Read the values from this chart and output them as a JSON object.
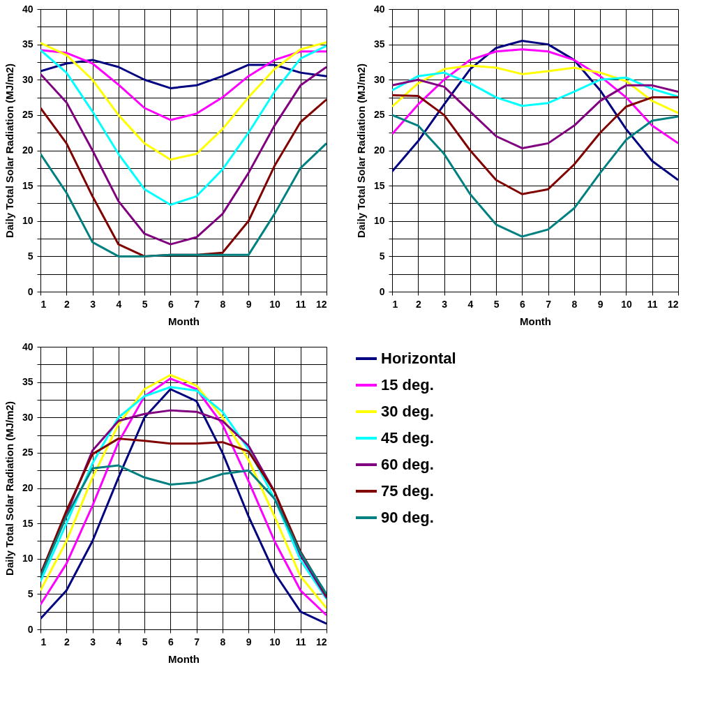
{
  "chart_data": [
    {
      "type": "line",
      "xlabel": "Month",
      "ylabel": "Daily Total Solar Radiation (MJ/m2)",
      "x": [
        1,
        2,
        3,
        4,
        5,
        6,
        7,
        8,
        9,
        10,
        11,
        12
      ],
      "xlim": [
        1,
        12
      ],
      "xticks": [
        1,
        2,
        3,
        4,
        5,
        6,
        7,
        8,
        9,
        10,
        11,
        12
      ],
      "ylim": [
        0,
        40
      ],
      "yticks": [
        0,
        {
          "value": 2.5,
          "label": null
        },
        5,
        {
          "value": 7.5,
          "label": null
        },
        10,
        {
          "value": 12.5,
          "label": null
        },
        15,
        {
          "value": 17.5,
          "label": null
        },
        20,
        {
          "value": 22.5,
          "label": null
        },
        25,
        {
          "value": 27.5,
          "label": null
        },
        30,
        {
          "value": 32.5,
          "label": null
        },
        35,
        {
          "value": 37.5,
          "label": null
        },
        40
      ],
      "grid": true,
      "legend": false,
      "line_style": "solid",
      "marker": "none",
      "series": [
        {
          "color": "#000080",
          "values": [
            31.2,
            32.3,
            32.8,
            31.8,
            30.0,
            28.8,
            29.2,
            30.5,
            32.1,
            32.1,
            31.0,
            30.5
          ]
        },
        {
          "color": "#ff00ff",
          "values": [
            34.2,
            33.8,
            32.3,
            29.3,
            26.0,
            24.3,
            25.2,
            27.5,
            30.5,
            32.8,
            34.0,
            34.0
          ]
        },
        {
          "color": "#ffff00",
          "values": [
            35.2,
            33.5,
            30.0,
            25.0,
            21.0,
            18.7,
            19.5,
            23.0,
            27.5,
            31.5,
            34.3,
            35.3
          ]
        },
        {
          "color": "#00ffff",
          "values": [
            34.2,
            31.0,
            25.5,
            19.5,
            14.5,
            12.3,
            13.5,
            17.3,
            22.5,
            28.3,
            33.0,
            34.8
          ]
        },
        {
          "color": "#800080",
          "values": [
            30.8,
            26.8,
            20.0,
            12.8,
            8.2,
            6.7,
            7.7,
            11.0,
            16.8,
            23.5,
            29.2,
            31.8
          ]
        },
        {
          "color": "#800000",
          "values": [
            26.0,
            21.0,
            13.5,
            6.7,
            5.0,
            5.2,
            5.2,
            5.5,
            10.0,
            17.8,
            24.0,
            27.2
          ]
        },
        {
          "color": "#008080",
          "values": [
            19.5,
            14.0,
            7.0,
            5.0,
            5.0,
            5.2,
            5.2,
            5.2,
            5.2,
            11.0,
            17.5,
            21.0
          ]
        }
      ]
    },
    {
      "type": "line",
      "xlabel": "Month",
      "ylabel": "Daily Total Solar Radiation (MJ/m2)",
      "x": [
        1,
        2,
        3,
        4,
        5,
        6,
        7,
        8,
        9,
        10,
        11,
        12
      ],
      "xlim": [
        1,
        12
      ],
      "xticks": [
        1,
        2,
        3,
        4,
        5,
        6,
        7,
        8,
        9,
        10,
        11,
        12
      ],
      "ylim": [
        0,
        40
      ],
      "yticks": [
        0,
        {
          "value": 2.5,
          "label": null
        },
        5,
        {
          "value": 7.5,
          "label": null
        },
        10,
        {
          "value": 12.5,
          "label": null
        },
        15,
        {
          "value": 17.5,
          "label": null
        },
        20,
        {
          "value": 22.5,
          "label": null
        },
        25,
        {
          "value": 27.5,
          "label": null
        },
        30,
        {
          "value": 32.5,
          "label": null
        },
        35,
        {
          "value": 37.5,
          "label": null
        },
        40
      ],
      "grid": true,
      "legend": false,
      "line_style": "solid",
      "marker": "none",
      "series": [
        {
          "color": "#000080",
          "values": [
            17.0,
            21.3,
            26.5,
            31.5,
            34.5,
            35.5,
            35.0,
            32.8,
            28.5,
            23.0,
            18.5,
            15.8
          ]
        },
        {
          "color": "#ff00ff",
          "values": [
            22.3,
            26.5,
            30.0,
            32.8,
            34.0,
            34.3,
            34.0,
            32.8,
            30.5,
            27.5,
            23.5,
            21.0
          ]
        },
        {
          "color": "#ffff00",
          "values": [
            26.2,
            29.5,
            31.5,
            32.0,
            31.7,
            30.8,
            31.2,
            31.7,
            31.0,
            29.8,
            27.0,
            25.3
          ]
        },
        {
          "color": "#00ffff",
          "values": [
            28.5,
            30.5,
            31.0,
            29.5,
            27.5,
            26.3,
            26.7,
            28.3,
            30.0,
            30.3,
            28.7,
            27.6
          ]
        },
        {
          "color": "#800080",
          "values": [
            29.2,
            30.0,
            29.0,
            25.5,
            22.0,
            20.3,
            21.0,
            23.5,
            27.0,
            29.2,
            29.2,
            28.3
          ]
        },
        {
          "color": "#800000",
          "values": [
            27.8,
            27.7,
            25.0,
            20.0,
            15.8,
            13.8,
            14.5,
            18.0,
            22.5,
            26.2,
            27.5,
            27.5
          ]
        },
        {
          "color": "#008080",
          "values": [
            25.0,
            23.5,
            19.5,
            13.8,
            9.5,
            7.8,
            8.8,
            11.8,
            16.8,
            21.5,
            24.2,
            24.8
          ]
        }
      ]
    },
    {
      "type": "line",
      "xlabel": "Month",
      "ylabel": "Daily Total Solar Radiation (MJ/m2)",
      "x": [
        1,
        2,
        3,
        4,
        5,
        6,
        7,
        8,
        9,
        10,
        11,
        12
      ],
      "xlim": [
        1,
        12
      ],
      "xticks": [
        1,
        2,
        3,
        4,
        5,
        6,
        7,
        8,
        9,
        10,
        11,
        12
      ],
      "ylim": [
        0,
        40
      ],
      "yticks": [
        0,
        {
          "value": 2.5,
          "label": null
        },
        5,
        {
          "value": 7.5,
          "label": null
        },
        10,
        {
          "value": 12.5,
          "label": null
        },
        15,
        {
          "value": 17.5,
          "label": null
        },
        20,
        {
          "value": 22.5,
          "label": null
        },
        25,
        {
          "value": 27.5,
          "label": null
        },
        30,
        {
          "value": 32.5,
          "label": null
        },
        35,
        {
          "value": 37.5,
          "label": null
        },
        40
      ],
      "grid": true,
      "legend": "right",
      "line_style": "solid",
      "marker": "none",
      "series": [
        {
          "name": "Horizontal",
          "color": "#000080",
          "values": [
            1.5,
            5.5,
            12.5,
            21.5,
            30.0,
            34.0,
            32.3,
            25.0,
            16.0,
            8.0,
            2.5,
            0.8
          ]
        },
        {
          "name": "15 deg.",
          "color": "#ff00ff",
          "values": [
            3.5,
            9.3,
            17.5,
            26.5,
            33.0,
            35.5,
            34.0,
            29.0,
            21.0,
            12.5,
            5.5,
            2.0
          ]
        },
        {
          "name": "30 deg.",
          "color": "#ffff00",
          "values": [
            5.5,
            12.5,
            21.5,
            29.0,
            34.0,
            36.0,
            34.5,
            30.0,
            24.0,
            16.0,
            7.5,
            3.0
          ]
        },
        {
          "name": "45 deg.",
          "color": "#00ffff",
          "values": [
            6.8,
            15.0,
            23.5,
            30.0,
            33.0,
            34.3,
            33.8,
            30.8,
            25.5,
            18.5,
            9.8,
            4.3
          ]
        },
        {
          "name": "60 deg.",
          "color": "#800080",
          "values": [
            7.8,
            16.3,
            25.3,
            29.5,
            30.5,
            31.0,
            30.8,
            29.5,
            26.0,
            19.5,
            10.5,
            4.5
          ]
        },
        {
          "name": "75 deg.",
          "color": "#800000",
          "values": [
            7.8,
            16.8,
            24.8,
            27.0,
            26.7,
            26.3,
            26.3,
            26.5,
            25.2,
            19.5,
            11.0,
            4.8
          ]
        },
        {
          "name": "90 deg.",
          "color": "#008080",
          "values": [
            7.5,
            16.0,
            22.8,
            23.2,
            21.5,
            20.5,
            20.8,
            22.0,
            22.5,
            18.5,
            10.8,
            5.0
          ]
        }
      ]
    }
  ]
}
